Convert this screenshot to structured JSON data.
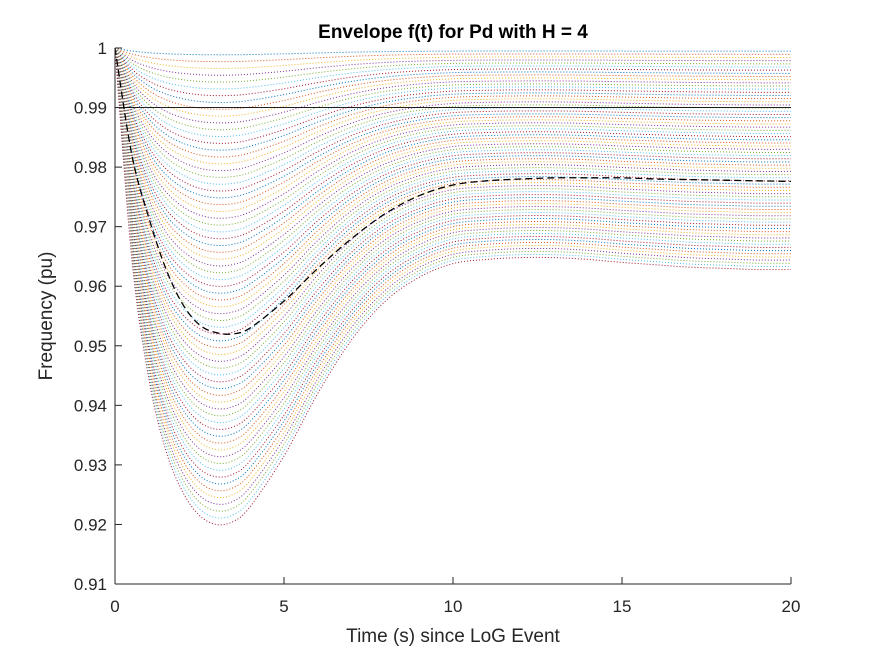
{
  "chart_data": {
    "type": "line",
    "title": "Envelope f(t) for Pd with H = 4",
    "xlabel": "Time (s) since LoG Event",
    "ylabel": "Frequency (pu)",
    "xlim": [
      0,
      20
    ],
    "ylim": [
      0.91,
      1
    ],
    "xticks": [
      0,
      5,
      10,
      15,
      20
    ],
    "xtick_labels": [
      "0",
      "5",
      "10",
      "15",
      "20"
    ],
    "yticks": [
      0.91,
      0.92,
      0.93,
      0.94,
      0.95,
      0.96,
      0.97,
      0.98,
      0.99,
      1
    ],
    "ytick_labels": [
      "0.91",
      "0.92",
      "0.93",
      "0.94",
      "0.95",
      "0.96",
      "0.97",
      "0.98",
      "0.99",
      "1"
    ],
    "grid": false,
    "legend": "none",
    "envelope_family": {
      "style": "dotted",
      "curve_count": 70,
      "t": [
        0,
        0.5,
        1,
        1.5,
        2,
        2.5,
        3,
        3.5,
        4,
        5,
        6,
        7,
        8,
        9,
        10,
        11,
        12,
        13,
        14,
        15,
        16,
        17,
        18,
        19,
        20
      ],
      "outermost_f": [
        1.0,
        0.9645,
        0.9445,
        0.9325,
        0.9255,
        0.9215,
        0.92,
        0.9205,
        0.923,
        0.9315,
        0.942,
        0.951,
        0.9575,
        0.9615,
        0.9638,
        0.9645,
        0.9648,
        0.9648,
        0.9645,
        0.964,
        0.9636,
        0.9632,
        0.963,
        0.9628,
        0.9628
      ],
      "colors": [
        "#0072BD",
        "#D95319",
        "#EDB120",
        "#7E2F8E",
        "#77AC30",
        "#4DBEEE",
        "#A2142F"
      ]
    },
    "reference_line": {
      "y": 0.99,
      "style": "solid",
      "color": "#000000"
    },
    "highlight_curve": {
      "style": "dashed",
      "color": "#000000",
      "t": [
        0,
        0.5,
        1,
        1.5,
        2,
        2.5,
        3,
        3.5,
        4,
        5,
        6,
        7,
        8,
        9,
        10,
        11,
        12,
        13,
        14,
        15,
        16,
        17,
        18,
        19,
        20
      ],
      "f": [
        1.0,
        0.982,
        0.9715,
        0.963,
        0.957,
        0.9535,
        0.9522,
        0.952,
        0.953,
        0.9575,
        0.963,
        0.968,
        0.9722,
        0.9752,
        0.977,
        0.9777,
        0.978,
        0.9782,
        0.9782,
        0.9782,
        0.978,
        0.9779,
        0.9778,
        0.9777,
        0.9776
      ]
    }
  }
}
